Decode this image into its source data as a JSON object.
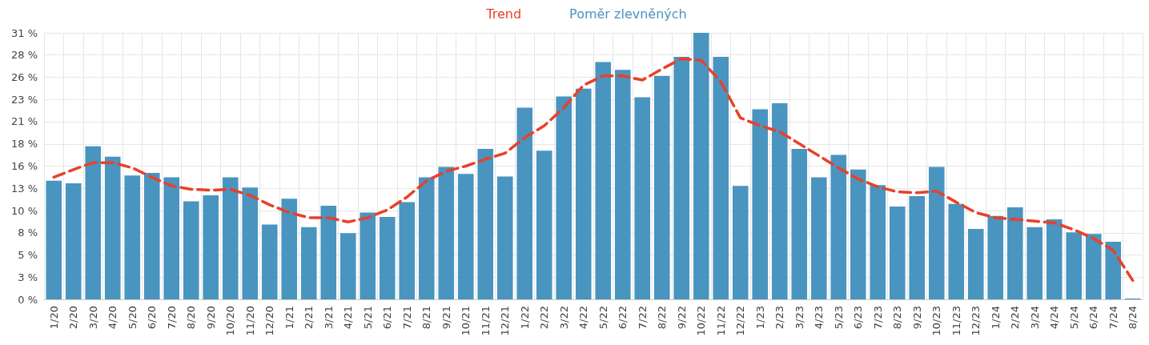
{
  "chart_data": {
    "type": "bar",
    "categories": [
      "1/20",
      "2/20",
      "3/20",
      "4/20",
      "5/20",
      "6/20",
      "7/20",
      "8/20",
      "9/20",
      "10/20",
      "11/20",
      "12/20",
      "1/21",
      "2/21",
      "3/21",
      "4/21",
      "5/21",
      "6/21",
      "7/21",
      "8/21",
      "9/21",
      "10/21",
      "11/21",
      "12/21",
      "1/22",
      "2/22",
      "3/22",
      "4/22",
      "5/22",
      "6/22",
      "7/22",
      "8/22",
      "9/22",
      "10/22",
      "11/22",
      "12/22",
      "1/23",
      "2/23",
      "3/23",
      "4/23",
      "5/23",
      "6/23",
      "7/23",
      "8/23",
      "9/23",
      "10/23",
      "11/23",
      "12/23",
      "1/24",
      "2/24",
      "3/24",
      "4/24",
      "5/24",
      "6/24",
      "7/24",
      "8/24"
    ],
    "series": [
      {
        "name": "Trend",
        "type": "line",
        "color": "#e8412a",
        "line_style": "dashed",
        "marker": "none",
        "values": [
          14.2,
          15.1,
          15.9,
          15.9,
          15.3,
          14.2,
          13.2,
          12.8,
          12.7,
          12.8,
          12.1,
          11.0,
          10.1,
          9.5,
          9.5,
          9.0,
          9.5,
          10.4,
          11.9,
          13.8,
          14.9,
          15.5,
          16.3,
          17.0,
          18.8,
          20.2,
          22.3,
          24.9,
          26.0,
          26.0,
          25.5,
          26.8,
          28.0,
          27.8,
          25.3,
          21.1,
          20.2,
          19.5,
          18.1,
          16.7,
          15.3,
          14.0,
          13.1,
          12.5,
          12.4,
          12.6,
          11.3,
          10.1,
          9.5,
          9.3,
          9.1,
          8.9,
          8.1,
          7.1,
          5.7,
          2.2
        ]
      },
      {
        "name": "Poměr zlevněných",
        "color": "#4a94c0",
        "values": [
          13.8,
          13.5,
          17.8,
          16.6,
          14.4,
          14.7,
          14.2,
          11.4,
          12.1,
          14.2,
          13.0,
          8.7,
          11.7,
          8.4,
          10.9,
          7.7,
          10.1,
          9.6,
          11.3,
          14.2,
          15.4,
          14.6,
          17.5,
          14.3,
          22.3,
          17.3,
          23.6,
          24.5,
          27.6,
          26.7,
          23.5,
          26.0,
          28.2,
          31.0,
          28.2,
          13.2,
          22.1,
          22.8,
          17.5,
          14.2,
          16.8,
          15.1,
          13.3,
          10.8,
          12.0,
          15.4,
          11.1,
          8.2,
          9.7,
          10.7,
          8.4,
          9.3,
          7.8,
          7.6,
          6.7,
          0.1
        ]
      }
    ],
    "ylim": [
      0,
      31
    ],
    "yticks": [
      {
        "value": 0,
        "label": "0 %"
      },
      {
        "value": 2.583,
        "label": "3 %"
      },
      {
        "value": 5.167,
        "label": "5 %"
      },
      {
        "value": 7.75,
        "label": "8 %"
      },
      {
        "value": 10.333,
        "label": "10 %"
      },
      {
        "value": 12.917,
        "label": "13 %"
      },
      {
        "value": 15.5,
        "label": "16 %"
      },
      {
        "value": 18.083,
        "label": "18 %"
      },
      {
        "value": 20.667,
        "label": "21 %"
      },
      {
        "value": 23.25,
        "label": "23 %"
      },
      {
        "value": 25.833,
        "label": "26 %"
      },
      {
        "value": 28.417,
        "label": "28 %"
      },
      {
        "value": 31,
        "label": "31 %"
      }
    ],
    "grid": true,
    "legend": "top"
  }
}
